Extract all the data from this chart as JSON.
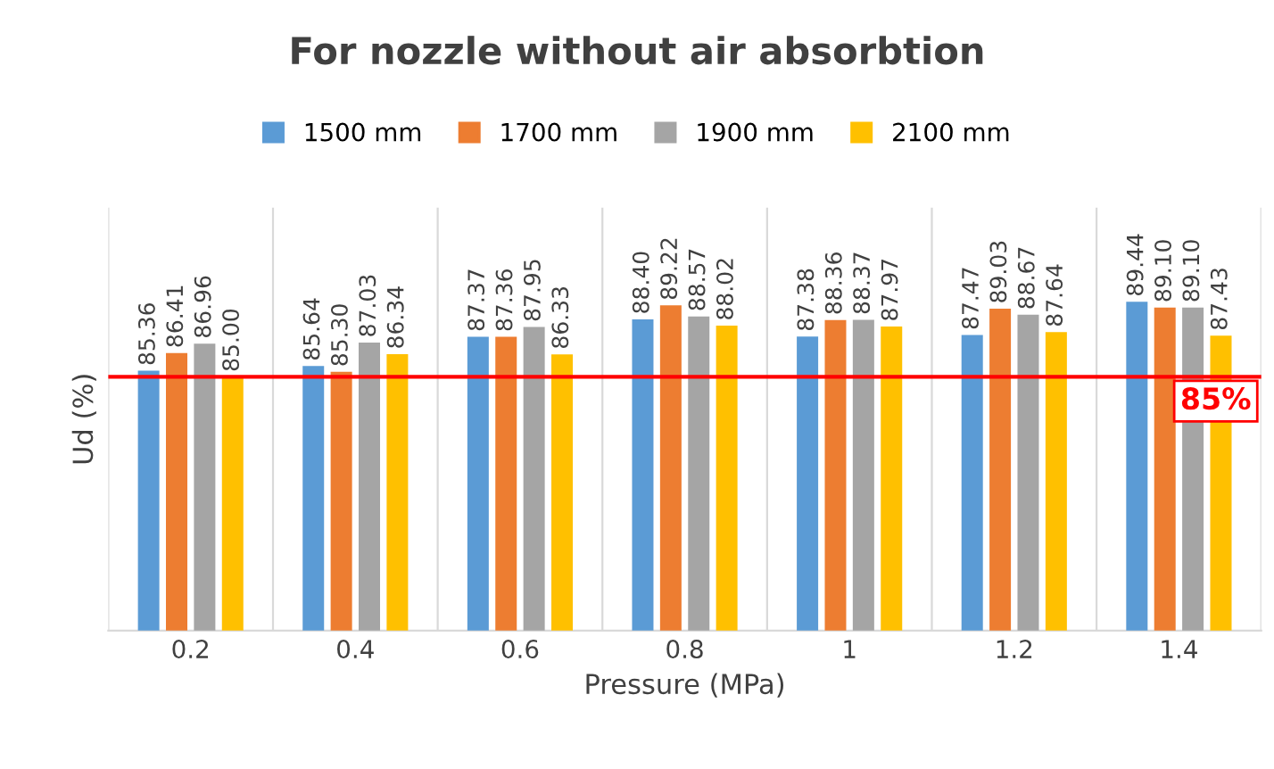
{
  "chart_data": {
    "type": "bar",
    "title": "For nozzle without air absorbtion",
    "xlabel": "Pressure (MPa)",
    "ylabel": "Ud (%)",
    "categories": [
      "0.2",
      "0.4",
      "0.6",
      "0.8",
      "1",
      "1.2",
      "1.4"
    ],
    "series": [
      {
        "name": "1500 mm",
        "color": "#5b9bd5",
        "values": [
          85.36,
          85.64,
          87.37,
          88.4,
          87.38,
          87.47,
          89.44
        ],
        "value_labels": [
          "85.36",
          "85.64",
          "87.37",
          "88.40",
          "87.38",
          "87.47",
          "89.44"
        ]
      },
      {
        "name": "1700 mm",
        "color": "#ed7d31",
        "values": [
          86.41,
          85.3,
          87.36,
          89.22,
          88.36,
          89.03,
          89.1
        ],
        "value_labels": [
          "86.41",
          "85.30",
          "87.36",
          "89.22",
          "88.36",
          "89.03",
          "89.10"
        ]
      },
      {
        "name": "1900 mm",
        "color": "#a5a5a5",
        "values": [
          86.96,
          87.03,
          87.95,
          88.57,
          88.37,
          88.67,
          89.1
        ],
        "value_labels": [
          "86.96",
          "87.03",
          "87.95",
          "88.57",
          "88.37",
          "88.67",
          "89.10"
        ]
      },
      {
        "name": "2100 mm",
        "color": "#ffc000",
        "values": [
          85.0,
          86.34,
          86.33,
          88.02,
          87.97,
          87.64,
          87.43
        ],
        "value_labels": [
          "85.00",
          "86.34",
          "86.33",
          "88.02",
          "87.97",
          "87.64",
          "87.43"
        ]
      }
    ],
    "ylim": [
      70,
      95
    ],
    "tick_labels": "x",
    "grid": "x",
    "legend": "top",
    "ref_lines": [
      {
        "axis": "y",
        "value": 85,
        "label": "85%",
        "color": "#ff0000"
      }
    ]
  }
}
